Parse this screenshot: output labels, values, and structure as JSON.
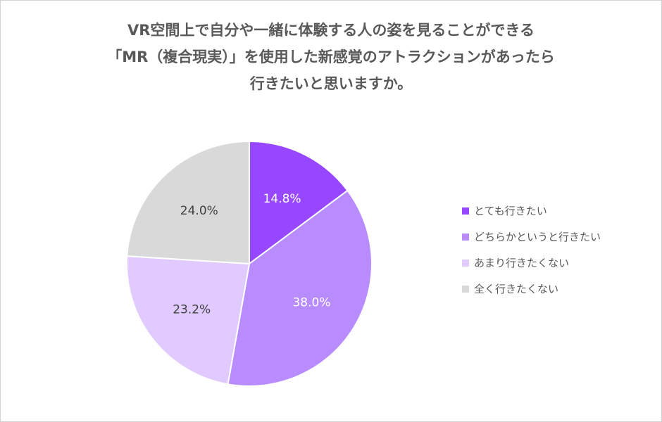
{
  "title_lines": [
    "VR空間上で自分や一緒に体験する人の姿を見ることができる",
    "「MR（複合現実）」を使用した新感覚のアトラクションがあったら",
    "行きたいと思いますか。"
  ],
  "chart_data": {
    "type": "pie",
    "title": "VR空間上で自分や一緒に体験する人の姿を見ることができる「MR（複合現実）」を使用した新感覚のアトラクションがあったら行きたいと思いますか。",
    "start": "top",
    "direction": "clockwise",
    "legend_position": "right",
    "slices": [
      {
        "label": "とても行きたい",
        "value": 14.8,
        "display": "14.8%",
        "color": "#9747ff"
      },
      {
        "label": "どちらかというと行きたい",
        "value": 38.0,
        "display": "38.0%",
        "color": "#b88cff"
      },
      {
        "label": "あまり行きたくない",
        "value": 23.2,
        "display": "23.2%",
        "color": "#e0caff"
      },
      {
        "label": "全く行きたくない",
        "value": 24.0,
        "display": "24.0%",
        "color": "#d9d9d9"
      }
    ]
  }
}
